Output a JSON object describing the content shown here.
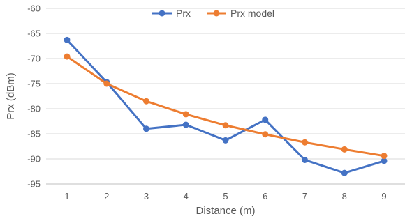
{
  "chart_data": {
    "type": "line",
    "title": "",
    "xlabel": "Distance (m)",
    "ylabel": "Prx (dBm)",
    "x": [
      1,
      2,
      3,
      4,
      5,
      6,
      7,
      8,
      9
    ],
    "ylim": [
      -95,
      -60
    ],
    "yticks": [
      -60,
      -65,
      -70,
      -75,
      -80,
      -85,
      -90,
      -95
    ],
    "grid": "horizontal",
    "legend_position": "top-center",
    "series": [
      {
        "name": "Prx",
        "color": "#4472c4",
        "values": [
          -66.3,
          -74.7,
          -84.0,
          -83.2,
          -86.3,
          -82.2,
          -90.2,
          -92.8,
          -90.4
        ]
      },
      {
        "name": "Prx model",
        "color": "#ed7d31",
        "values": [
          -69.6,
          -75.0,
          -78.5,
          -81.1,
          -83.3,
          -85.1,
          -86.7,
          -88.1,
          -89.4
        ]
      }
    ]
  }
}
